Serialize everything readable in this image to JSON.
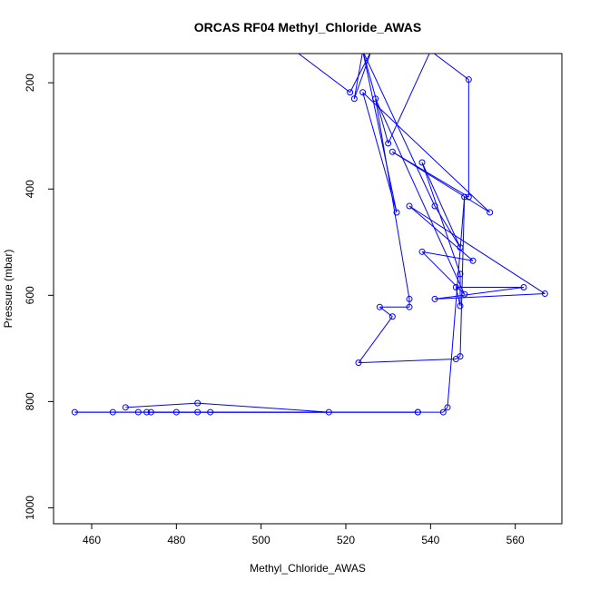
{
  "chart_data": {
    "type": "line",
    "title": "ORCAS RF04 Methyl_Chloride_AWAS",
    "xlabel": "Methyl_Chloride_AWAS",
    "ylabel": "Pressure (mbar)",
    "xlim": [
      451,
      571
    ],
    "ylim": [
      1030,
      145
    ],
    "y_axis_reversed": true,
    "grid": false,
    "x_ticks": [
      460,
      480,
      500,
      520,
      540,
      560
    ],
    "y_ticks": [
      200,
      400,
      600,
      800,
      1000
    ],
    "series_color": "#0000ff",
    "series": [
      {
        "values_xy": [
          [
            508,
            140
          ],
          [
            521,
            218
          ],
          [
            526,
            140
          ],
          [
            522,
            230
          ],
          [
            524,
            140
          ],
          [
            530,
            314
          ],
          [
            540,
            140
          ],
          [
            549,
            194
          ],
          [
            549,
            415
          ],
          [
            531,
            330
          ],
          [
            554,
            444
          ],
          [
            524,
            218
          ],
          [
            532,
            444
          ],
          [
            524,
            140
          ],
          [
            541,
            432
          ],
          [
            547,
            510
          ],
          [
            538,
            350
          ],
          [
            547,
            560
          ],
          [
            547,
            620
          ],
          [
            546,
            585
          ],
          [
            562,
            585
          ],
          [
            541,
            607
          ],
          [
            567,
            597
          ],
          [
            535,
            432
          ],
          [
            550,
            535
          ],
          [
            538,
            518
          ],
          [
            548,
            598
          ],
          [
            527,
            230
          ],
          [
            535,
            607
          ],
          [
            535,
            622
          ],
          [
            528,
            622
          ],
          [
            531,
            640
          ],
          [
            523,
            727
          ],
          [
            546,
            720
          ],
          [
            547,
            715
          ],
          [
            548,
            415
          ],
          [
            544,
            811
          ],
          [
            543,
            820
          ],
          [
            485,
            820
          ],
          [
            474,
            820
          ],
          [
            473,
            820
          ],
          [
            537,
            820
          ],
          [
            537,
            820
          ],
          [
            456,
            820
          ],
          [
            465,
            820
          ],
          [
            471,
            820
          ],
          [
            480,
            820
          ],
          [
            488,
            820
          ],
          [
            516,
            820
          ],
          [
            485,
            803
          ],
          [
            468,
            811
          ]
        ]
      }
    ]
  }
}
